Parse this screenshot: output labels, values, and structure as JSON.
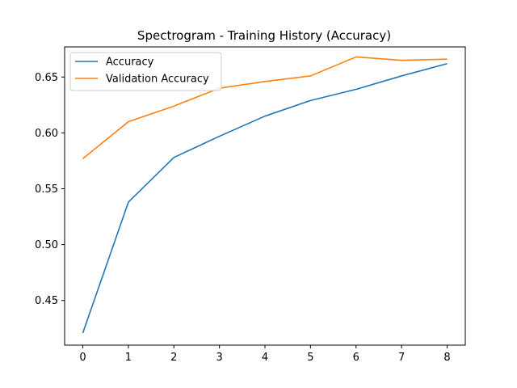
{
  "chart_data": {
    "type": "line",
    "title": "Spectrogram - Training History (Accuracy)",
    "xlabel": "",
    "ylabel": "",
    "x": [
      0,
      1,
      2,
      3,
      4,
      5,
      6,
      7,
      8
    ],
    "xlim": [
      -0.4,
      8.4
    ],
    "ylim": [
      0.41,
      0.677
    ],
    "xticks": [
      0,
      1,
      2,
      3,
      4,
      5,
      6,
      7,
      8
    ],
    "yticks": [
      0.45,
      0.5,
      0.55,
      0.6,
      0.65
    ],
    "ytick_labels": [
      "0.45",
      "0.50",
      "0.55",
      "0.60",
      "0.65"
    ],
    "grid": false,
    "legend_position": "top-left",
    "series": [
      {
        "name": "Accuracy",
        "color": "#1f77b4",
        "values": [
          0.421,
          0.538,
          0.578,
          0.597,
          0.615,
          0.629,
          0.639,
          0.651,
          0.662
        ]
      },
      {
        "name": "Validation Accuracy",
        "color": "#ff7f0e",
        "values": [
          0.577,
          0.61,
          0.624,
          0.64,
          0.646,
          0.651,
          0.668,
          0.665,
          0.666
        ]
      }
    ]
  }
}
